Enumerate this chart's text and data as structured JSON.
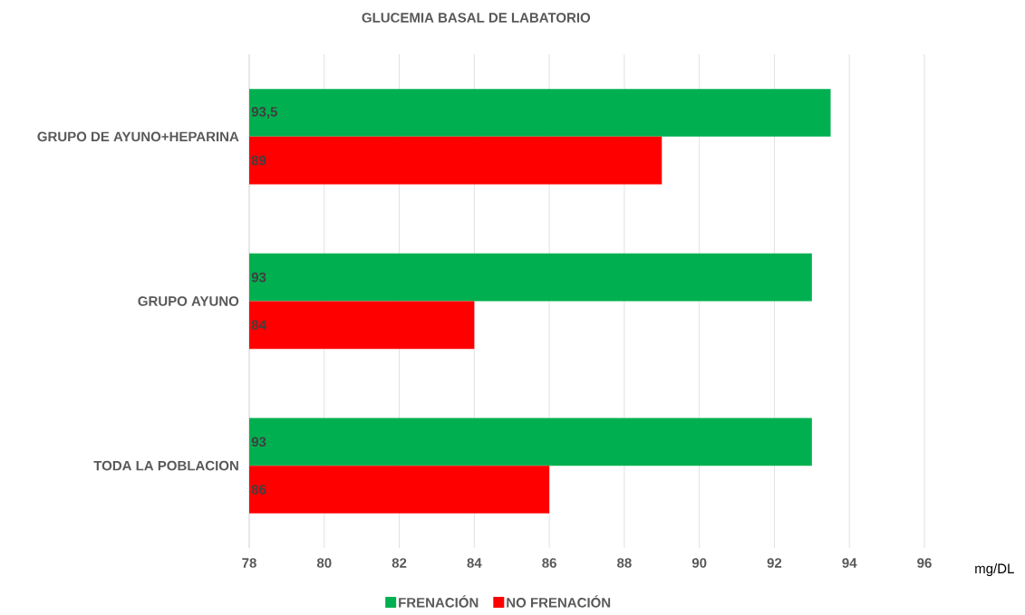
{
  "chart_data": {
    "type": "bar",
    "orientation": "horizontal",
    "title": "GLUCEMIA BASAL  DE LABATORIO",
    "xlabel": "mg/DL",
    "categories": [
      "GRUPO DE AYUNO+HEPARINA",
      "GRUPO AYUNO",
      "TODA LA POBLACION"
    ],
    "series": [
      {
        "name": "FRENACIÓN",
        "color": "#00b050",
        "values": [
          93.5,
          93,
          93
        ],
        "value_labels": [
          "93,5",
          "93",
          "93"
        ]
      },
      {
        "name": "NO FRENACIÓN",
        "color": "#ff0000",
        "values": [
          89,
          84,
          86
        ],
        "value_labels": [
          "89",
          "84",
          "86"
        ]
      }
    ],
    "xlim": [
      78,
      96
    ],
    "xticks": [
      78,
      80,
      82,
      84,
      86,
      88,
      90,
      92,
      94,
      96
    ],
    "grid": "x",
    "legend": "bottom"
  }
}
